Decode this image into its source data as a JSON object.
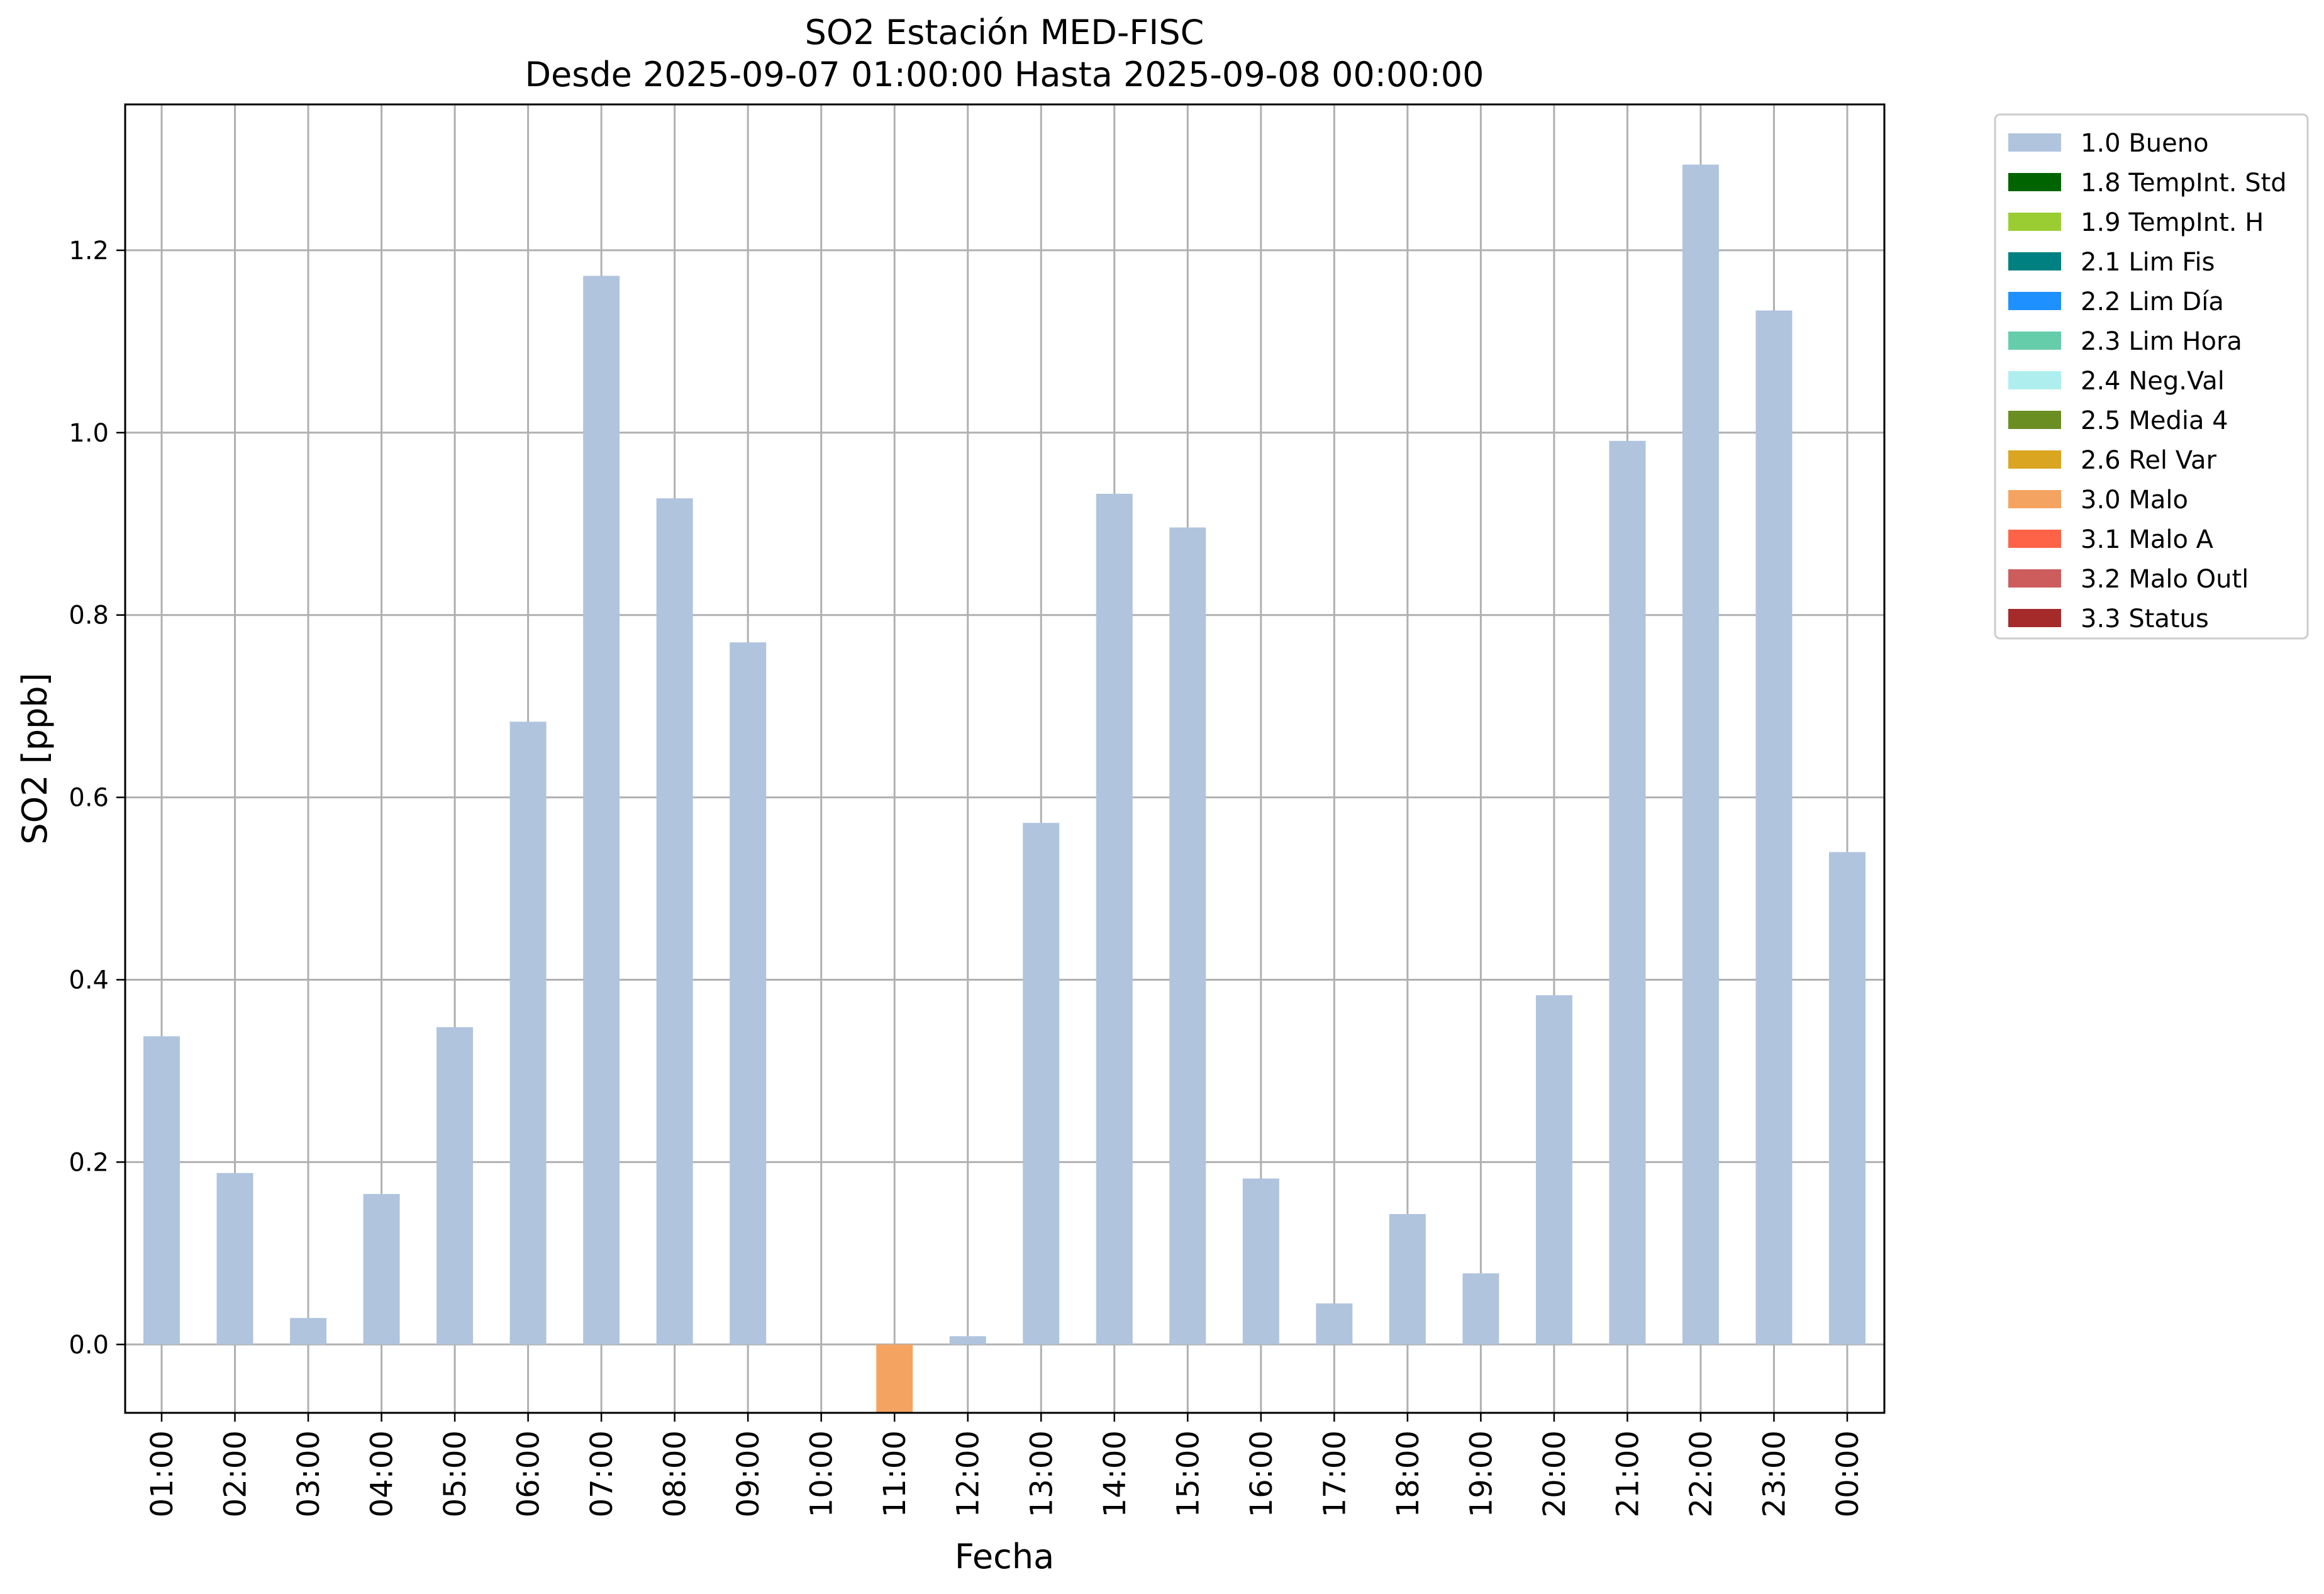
{
  "chart_data": {
    "type": "bar",
    "title": "SO2 Estación MED-FISC",
    "subtitle": "Desde 2025-09-07 01:00:00 Hasta 2025-09-08 00:00:00",
    "xlabel": "Fecha",
    "ylabel": "SO2 [ppb]",
    "ylim": [
      -0.075,
      1.36
    ],
    "yticks": [
      "0.0",
      "0.2",
      "0.4",
      "0.6",
      "0.8",
      "1.0",
      "1.2"
    ],
    "grid": true,
    "legend_position": "outside-right-top",
    "categories": [
      "01:00",
      "02:00",
      "03:00",
      "04:00",
      "05:00",
      "06:00",
      "07:00",
      "08:00",
      "09:00",
      "10:00",
      "11:00",
      "12:00",
      "13:00",
      "14:00",
      "15:00",
      "16:00",
      "17:00",
      "18:00",
      "19:00",
      "20:00",
      "21:00",
      "22:00",
      "23:00",
      "00:00"
    ],
    "values": [
      0.338,
      0.188,
      0.029,
      0.165,
      0.348,
      0.683,
      1.172,
      0.928,
      0.77,
      null,
      -0.075,
      0.009,
      0.572,
      0.933,
      0.896,
      0.182,
      0.045,
      0.143,
      0.078,
      0.383,
      0.991,
      1.294,
      1.134,
      0.54
    ],
    "bar_flags": [
      "3.0 Malo"
    ],
    "flag_index": [
      0,
      0,
      0,
      0,
      0,
      0,
      0,
      0,
      0,
      0,
      9,
      0,
      0,
      0,
      0,
      0,
      0,
      0,
      0,
      0,
      0,
      0,
      0,
      0
    ],
    "legend": [
      {
        "label": "1.0 Bueno",
        "color": "#b0c4de"
      },
      {
        "label": "1.8 TempInt. Std",
        "color": "#006400"
      },
      {
        "label": "1.9 TempInt. H",
        "color": "#9acd32"
      },
      {
        "label": "2.1 Lim Fis",
        "color": "#008080"
      },
      {
        "label": "2.2 Lim Día",
        "color": "#1e90ff"
      },
      {
        "label": "2.3 Lim Hora",
        "color": "#66cdaa"
      },
      {
        "label": "2.4 Neg.Val",
        "color": "#afeeee"
      },
      {
        "label": "2.5 Media 4",
        "color": "#6b8e23"
      },
      {
        "label": "2.6 Rel Var",
        "color": "#daa520"
      },
      {
        "label": "3.0 Malo",
        "color": "#f4a460"
      },
      {
        "label": "3.1 Malo A",
        "color": "#ff6347"
      },
      {
        "label": "3.2 Malo Outl",
        "color": "#cd5c5c"
      },
      {
        "label": "3.3 Status",
        "color": "#a52a2a"
      }
    ]
  }
}
